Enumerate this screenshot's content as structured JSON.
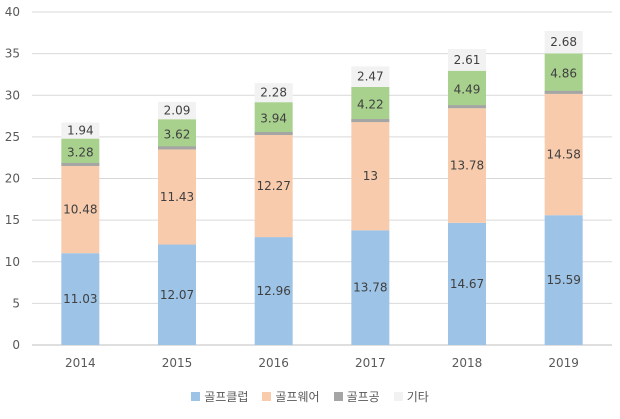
{
  "chart_data": {
    "type": "bar",
    "stacked": true,
    "categories": [
      "2014",
      "2015",
      "2016",
      "2017",
      "2018",
      "2019"
    ],
    "series": [
      {
        "name": "골프클럽",
        "color": "#9dc3e6",
        "values": [
          11.03,
          12.07,
          12.96,
          13.78,
          14.67,
          15.59
        ]
      },
      {
        "name": "골프웨어",
        "color": "#f8cbad",
        "values": [
          10.48,
          11.43,
          12.27,
          13,
          13.78,
          14.58
        ]
      },
      {
        "name": "골프공",
        "color": "#a9d18e",
        "legend_color": "#a5a5a5",
        "values": [
          3.28,
          3.62,
          3.94,
          4.22,
          4.49,
          4.86
        ]
      },
      {
        "name": "기타",
        "color": "#f2f2f2",
        "values": [
          1.94,
          2.09,
          2.28,
          2.47,
          2.61,
          2.68
        ]
      }
    ],
    "value_labels": [
      [
        "11.03",
        "12.07",
        "12.96",
        "13.78",
        "14.67",
        "15.59"
      ],
      [
        "10.48",
        "11.43",
        "12.27",
        "13",
        "13.78",
        "14.58"
      ],
      [
        "3.28",
        "3.62",
        "3.94",
        "4.22",
        "4.49",
        "4.86"
      ],
      [
        "1.94",
        "2.09",
        "2.28",
        "2.47",
        "2.61",
        "2.68"
      ]
    ],
    "y_ticks": [
      "0",
      "5",
      "10",
      "15",
      "20",
      "25",
      "30",
      "35",
      "40"
    ],
    "ylim": [
      0,
      40
    ],
    "grid": true,
    "legend_position": "bottom",
    "title": "",
    "xlabel": "",
    "ylabel": ""
  }
}
